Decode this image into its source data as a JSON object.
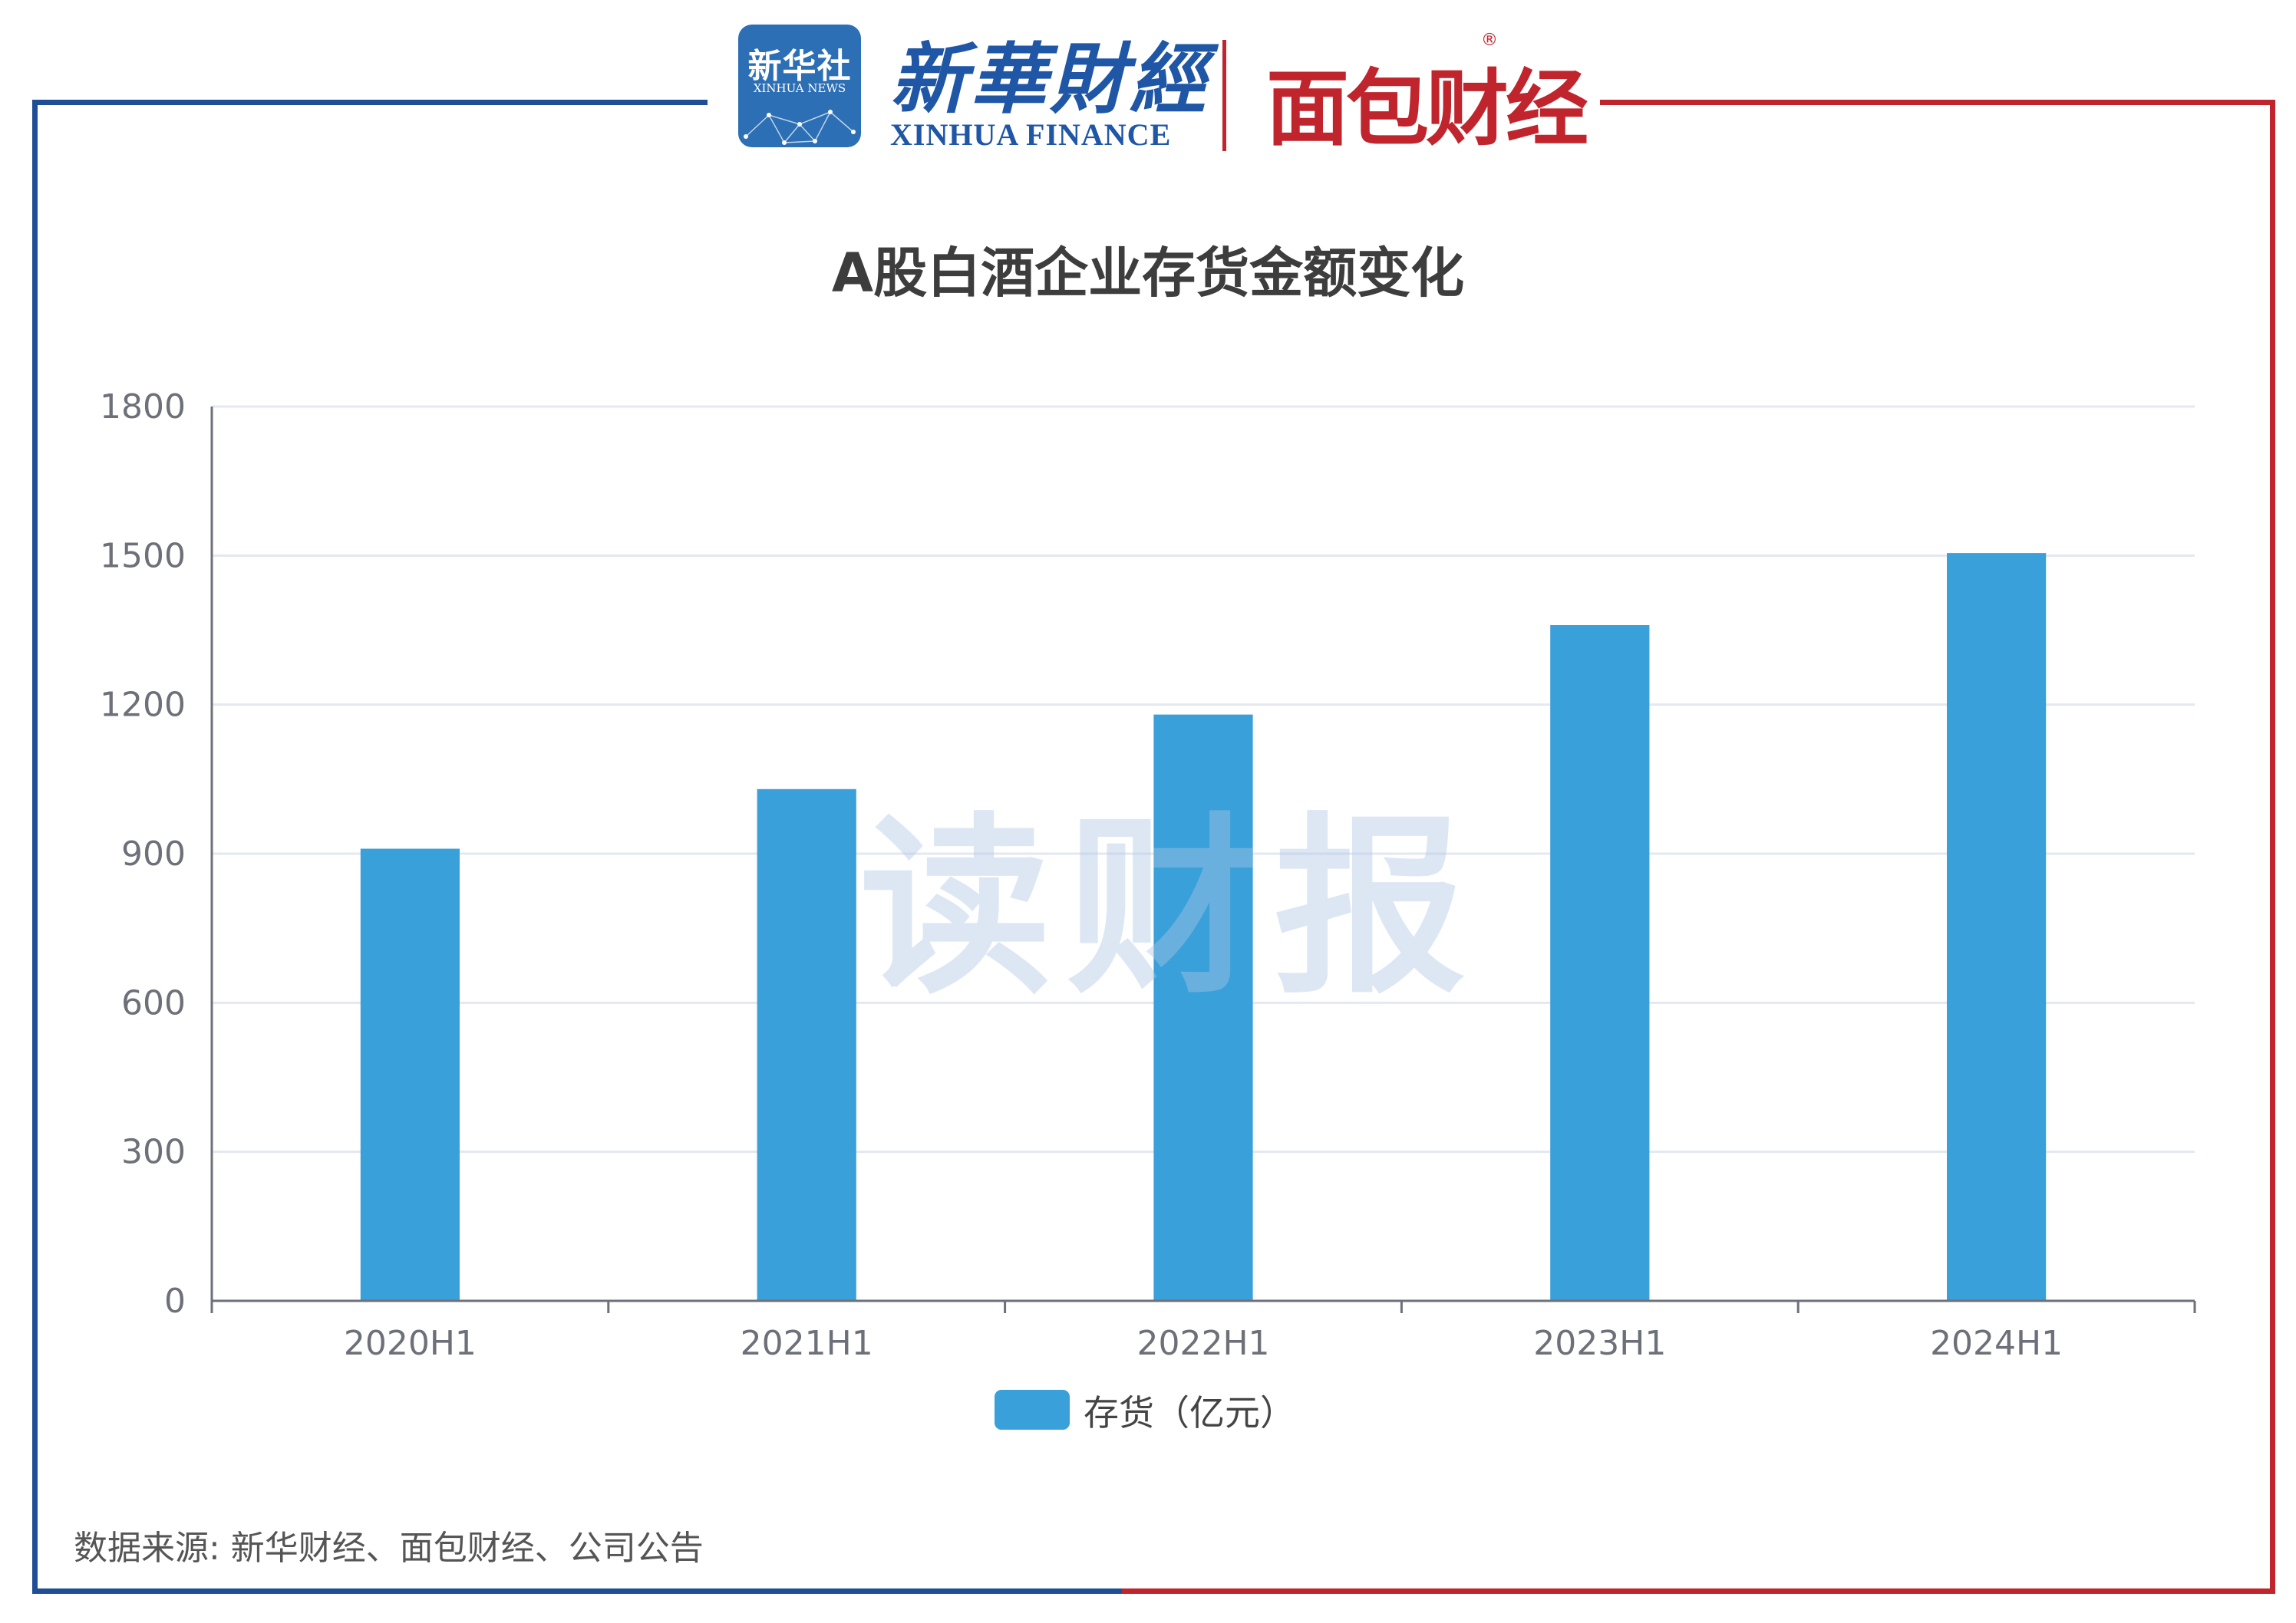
{
  "header": {
    "xinhua_badge_cn": "新华社",
    "xinhua_badge_en": "XINHUA NEWS",
    "xinhua_finance_cn": "新華財經",
    "xinhua_finance_en": "XINHUA FINANCE",
    "mianbao_logo": "面包财经",
    "registered_mark": "®"
  },
  "watermark": "读财报",
  "colors": {
    "bar": "#3aa0da",
    "frame_left": "#1f4e95",
    "frame_right": "#c0242c"
  },
  "chart_data": {
    "type": "bar",
    "title": "A股白酒企业存货金额变化",
    "categories": [
      "2020H1",
      "2021H1",
      "2022H1",
      "2023H1",
      "2024H1"
    ],
    "series": [
      {
        "name": "存货（亿元）",
        "values": [
          910,
          1030,
          1180,
          1360,
          1505
        ]
      }
    ],
    "ylim": [
      0,
      1800
    ],
    "yticks": [
      "0",
      "300",
      "600",
      "900",
      "1200",
      "1500",
      "1800"
    ],
    "grid": true,
    "legend": "bottom-center"
  },
  "source": "数据来源: 新华财经、面包财经、公司公告"
}
